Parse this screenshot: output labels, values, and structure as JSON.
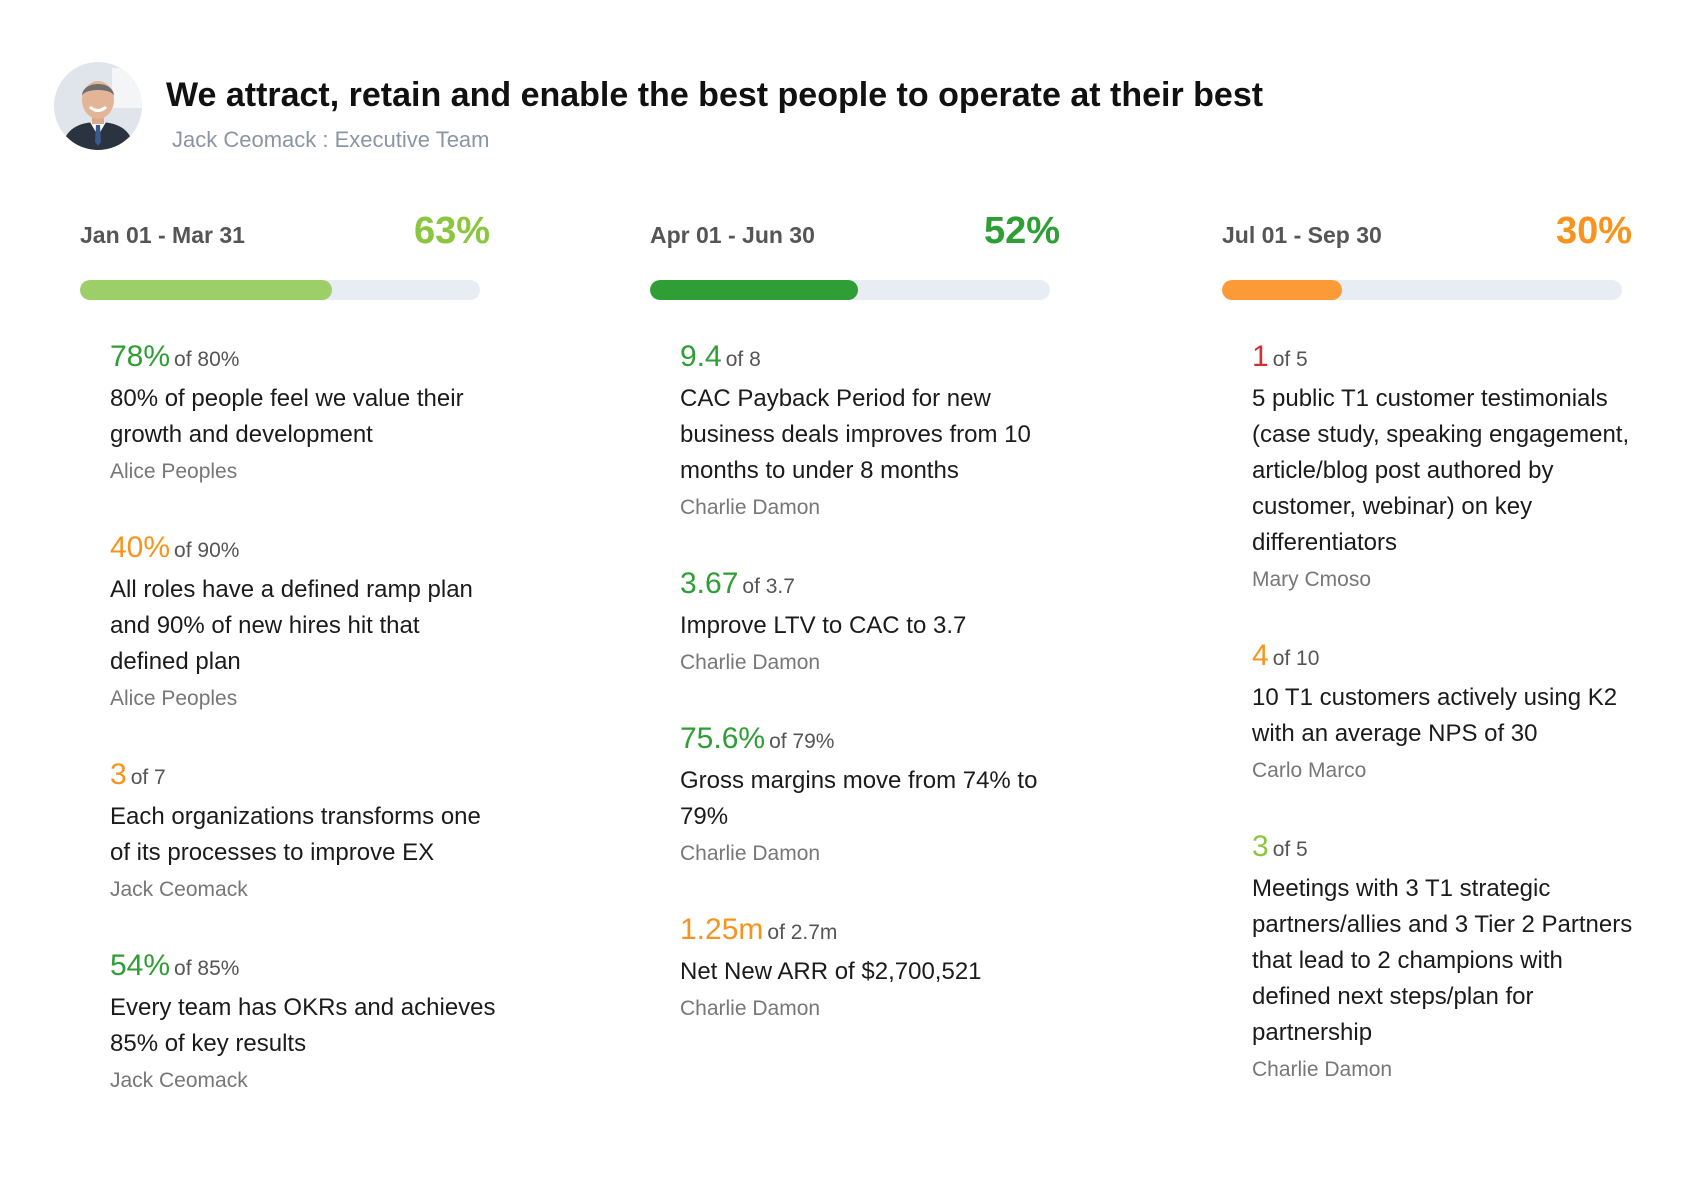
{
  "header": {
    "title": "We attract, retain and enable the best people to operate at their best",
    "subtitle": "Jack Ceomack : Executive Team"
  },
  "colors": {
    "green_light": "#8cc63f",
    "green_dark": "#2e9e35",
    "orange": "#f7941d",
    "red": "#d32f2f",
    "track": "#e8edf4"
  },
  "columns": [
    {
      "date_range": "Jan 01 - Mar 31",
      "percent": "63%",
      "progress": 0.63,
      "color": "#8cc63f",
      "bar_color": "#9ccf67",
      "key_results": [
        {
          "value": "78%",
          "target": "of 80%",
          "color": "#2e9e35",
          "description": "80% of people feel we value their growth and development",
          "owner": "Alice Peoples"
        },
        {
          "value": "40%",
          "target": "of 90%",
          "color": "#f7941d",
          "description": "All roles have a defined ramp plan and 90% of new hires hit that defined plan",
          "owner": "Alice Peoples"
        },
        {
          "value": "3",
          "target": "of 7",
          "color": "#f7941d",
          "description": "Each organizations transforms one of its processes to improve EX",
          "owner": "Jack Ceomack"
        },
        {
          "value": "54%",
          "target": "of 85%",
          "color": "#2e9e35",
          "description": "Every team has OKRs and achieves 85% of key results",
          "owner": "Jack Ceomack"
        }
      ]
    },
    {
      "date_range": "Apr 01 - Jun 30",
      "percent": "52%",
      "progress": 0.52,
      "color": "#2e9e35",
      "bar_color": "#2e9e35",
      "key_results": [
        {
          "value": "9.4",
          "target": "of 8",
          "color": "#2e9e35",
          "description": "CAC Payback Period for new business deals improves from 10 months to under 8 months",
          "owner": "Charlie Damon"
        },
        {
          "value": "3.67",
          "target": "of 3.7",
          "color": "#2e9e35",
          "description": "Improve LTV to CAC to 3.7",
          "owner": "Charlie Damon"
        },
        {
          "value": "75.6%",
          "target": "of 79%",
          "color": "#2e9e35",
          "description": "Gross margins move from 74% to 79%",
          "owner": "Charlie Damon"
        },
        {
          "value": "1.25m",
          "target": "of 2.7m",
          "color": "#f7941d",
          "description": "Net New ARR of $2,700,521",
          "owner": "Charlie Damon"
        }
      ]
    },
    {
      "date_range": "Jul 01 - Sep 30",
      "percent": "30%",
      "progress": 0.3,
      "color": "#f7941d",
      "bar_color": "#fd9a38",
      "key_results": [
        {
          "value": "1",
          "target": "of 5",
          "color": "#d32f2f",
          "description": "5 public T1 customer testimonials (case study, speaking engagement, article/blog post authored by customer, webinar) on key differentiators",
          "owner": "Mary Cmoso"
        },
        {
          "value": "4",
          "target": "of 10",
          "color": "#f7941d",
          "description": "10 T1 customers actively using K2 with an average NPS of 30",
          "owner": "Carlo Marco"
        },
        {
          "value": "3",
          "target": "of 5",
          "color": "#8cc63f",
          "description": "Meetings with 3 T1 strategic partners/allies and 3 Tier 2 Partners that lead to 2 champions with defined next steps/plan for partnership",
          "owner": "Charlie Damon"
        }
      ]
    }
  ]
}
